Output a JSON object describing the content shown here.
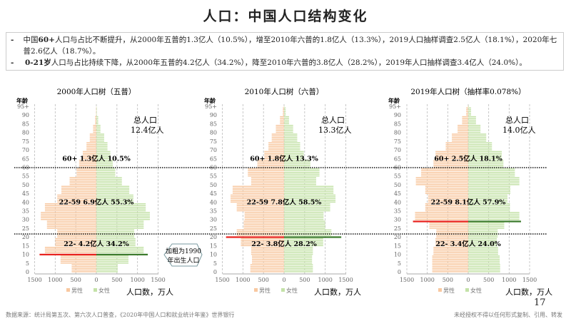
{
  "title": "人口：中国人口结构变化",
  "bullets": [
    {
      "bold": "60+",
      "pre": "中国",
      "text": "人口与占比不断提升，从2000年五普的1.3亿人（10.5%），增至2010年六普的1.8亿人（13.3%），2019人口抽样调查2.5亿人（18.1%），2020年七普2.6亿人（18.7%）。"
    },
    {
      "bold": "0-21岁",
      "pre": "",
      "text": "人口与占比持续下降，从2000年五普的4.2亿人（34.2%），降至2010年六普的3.8亿人（28.2%），2019年人口抽样调查3.4亿人（24.0%）。"
    }
  ],
  "callout": "加粗为1990年出生人口",
  "page_number": "17",
  "footer": {
    "source": "数据来源：统计局第五次、第六次人口普查，《2020年中国人口和就业统计年鉴》世界银行",
    "rights": "未经授权不得以任何形式复制、引用、转发"
  },
  "colors": {
    "male": "#f8c8a0",
    "female": "#c4e2a8",
    "highlight_male": "#e8201c",
    "highlight_female": "#3a7a2a"
  },
  "chart_data": [
    {
      "type": "bar",
      "title": "2000年人口树（五普）",
      "ylabel": "年龄",
      "xlabel": "人口数，万人",
      "legend": [
        "男性",
        "女性"
      ],
      "legend_position": "bottom",
      "y_ticks": [
        "0",
        "5",
        "10",
        "15",
        "20",
        "25",
        "30",
        "35",
        "40",
        "45",
        "50",
        "55",
        "60",
        "65",
        "70",
        "75",
        "80",
        "85",
        "90",
        "95+"
      ],
      "x_ticks": [
        "1500",
        "1000",
        "500",
        "0",
        "500",
        "1000",
        "1500"
      ],
      "xlim": [
        -1500,
        1500
      ],
      "age_groups": [
        "0-4",
        "5-9",
        "10-14",
        "15-19",
        "20-24",
        "25-29",
        "30-34",
        "35-39",
        "40-44",
        "45-49",
        "50-54",
        "55-59",
        "60-64",
        "65-69",
        "70-74",
        "75-79",
        "80-84",
        "85-89",
        "90-94",
        "95+"
      ],
      "male": [
        600,
        870,
        1250,
        1000,
        950,
        1200,
        1350,
        1250,
        950,
        850,
        650,
        480,
        420,
        330,
        240,
        160,
        80,
        30,
        8,
        2
      ],
      "female": [
        520,
        780,
        1150,
        950,
        920,
        1150,
        1300,
        1200,
        900,
        800,
        620,
        460,
        400,
        340,
        270,
        190,
        100,
        45,
        12,
        3
      ],
      "highlight": {
        "age": 10,
        "male": 1380,
        "female": 1250
      },
      "total_l1": "总人口",
      "total_l2": "12.4亿人",
      "annotations": [
        "60+ 1.3亿人 10.5%",
        "22-59 6.9亿人 55.3%",
        "22- 4.2亿人 34.2%"
      ]
    },
    {
      "type": "bar",
      "title": "2010年人口树（六普）",
      "ylabel": "年龄",
      "xlabel": "人口数，万人",
      "legend": [
        "男性",
        "女性"
      ],
      "legend_position": "bottom",
      "y_ticks": [
        "0",
        "5",
        "10",
        "15",
        "20",
        "25",
        "30",
        "35",
        "40",
        "45",
        "50",
        "55",
        "60",
        "65",
        "70",
        "75",
        "80",
        "85",
        "90",
        "95+"
      ],
      "x_ticks": [
        "1500",
        "1000",
        "500",
        "0",
        "500",
        "1000",
        "1500"
      ],
      "xlim": [
        -1500,
        1500
      ],
      "age_groups": [
        "0-4",
        "5-9",
        "10-14",
        "15-19",
        "20-24",
        "25-29",
        "30-34",
        "35-39",
        "40-44",
        "45-49",
        "50-54",
        "55-59",
        "60-64",
        "65-69",
        "70-74",
        "75-79",
        "80-84",
        "85-89",
        "90-94",
        "95+"
      ],
      "male": [
        820,
        780,
        800,
        1050,
        1150,
        980,
        960,
        1150,
        1300,
        1250,
        800,
        880,
        650,
        480,
        380,
        300,
        200,
        100,
        30,
        5
      ],
      "female": [
        700,
        680,
        700,
        950,
        1150,
        1000,
        960,
        1120,
        1250,
        1200,
        780,
        860,
        640,
        480,
        390,
        320,
        220,
        120,
        40,
        8
      ],
      "highlight": {
        "age": 20,
        "male": 1410,
        "female": 1390
      },
      "total_l1": "总人口",
      "total_l2": "13.3亿人",
      "annotations": [
        "60+ 1.8亿人 13.3%",
        "22-59 7.8亿人 58.5%",
        "22- 3.8亿人 28.2%"
      ]
    },
    {
      "type": "bar",
      "title": "2019年人口树（抽样率0.078%）",
      "ylabel": "年龄",
      "xlabel": "人口数，万人",
      "legend": [
        "男性",
        "女性"
      ],
      "legend_position": "bottom",
      "y_ticks": [
        "0",
        "5",
        "10",
        "15",
        "20",
        "25",
        "30",
        "35",
        "40",
        "45",
        "50",
        "55",
        "60",
        "65",
        "70",
        "75",
        "80",
        "85",
        "90",
        "95+"
      ],
      "x_ticks": [
        "1500",
        "1000",
        "500",
        "0",
        "500",
        "1000",
        "1500"
      ],
      "xlim": [
        -1500,
        1500
      ],
      "age_groups": [
        "0-4",
        "5-9",
        "10-14",
        "15-19",
        "20-24",
        "25-29",
        "30-34",
        "35-39",
        "40-44",
        "45-49",
        "50-54",
        "55-59",
        "60-64",
        "65-69",
        "70-74",
        "75-79",
        "80-84",
        "85-89",
        "90-94",
        "95+"
      ],
      "male": [
        880,
        880,
        850,
        800,
        780,
        950,
        1300,
        1050,
        980,
        1050,
        1280,
        1150,
        850,
        800,
        550,
        400,
        260,
        150,
        50,
        8
      ],
      "female": [
        780,
        770,
        730,
        700,
        720,
        880,
        1250,
        1020,
        960,
        1030,
        1250,
        1140,
        860,
        820,
        580,
        440,
        300,
        190,
        70,
        15
      ],
      "highlight": {
        "age": 29,
        "male": 1350,
        "female": 1290
      },
      "total_l1": "总人口",
      "total_l2": "14.0亿人",
      "annotations": [
        "60+ 2.5亿人 18.1%",
        "22-59 8.1亿人 57.9%",
        "22- 3.4亿人 24.0%"
      ]
    }
  ]
}
